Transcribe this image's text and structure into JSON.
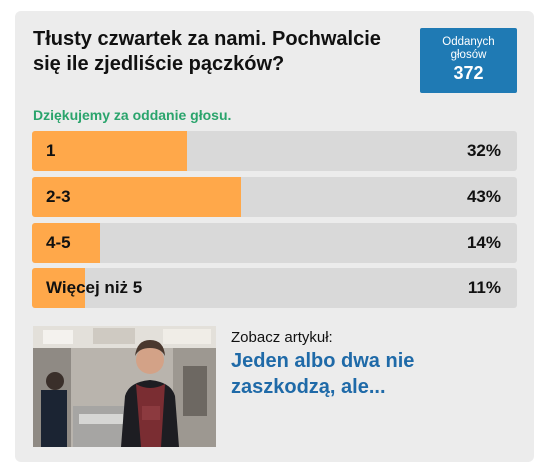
{
  "poll": {
    "question": "Tłusty czwartek za nami. Pochwalcie się ile zjedliście pączków?",
    "votes_label": "Oddanych głosów",
    "votes_count": "372",
    "thanks": "Dziękujemy za oddanie głosu.",
    "options": [
      {
        "label": "1",
        "percent_text": "32%",
        "percent": 32
      },
      {
        "label": "2-3",
        "percent_text": "43%",
        "percent": 43
      },
      {
        "label": "4-5",
        "percent_text": "14%",
        "percent": 14
      },
      {
        "label": "Więcej niż 5",
        "percent_text": "11%",
        "percent": 11
      }
    ],
    "colors": {
      "fill": "#ffa84a",
      "track": "#d9d9d9",
      "accent": "#1f7ab4",
      "thanks": "#2aa46c",
      "link": "#1f6aa8"
    }
  },
  "related": {
    "see_label": "Zobacz artykuł:",
    "title": "Jeden albo dwa nie zaszkodzą, ale..."
  }
}
